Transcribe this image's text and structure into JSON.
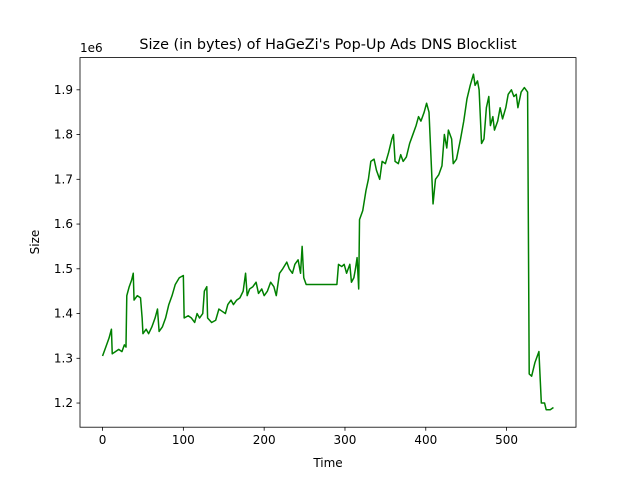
{
  "chart_data": {
    "type": "line",
    "title": "Size (in bytes) of HaGeZi's Pop-Up Ads DNS Blocklist",
    "x_label": "Time",
    "y_label": "Size",
    "y_offset_label": "1e6",
    "x": [
      0,
      4,
      8,
      11,
      12,
      16,
      20,
      24,
      27,
      29,
      30,
      33,
      36,
      38,
      39,
      43,
      47,
      49,
      50,
      54,
      57,
      61,
      65,
      68,
      70,
      74,
      78,
      82,
      86,
      90,
      95,
      100,
      101,
      106,
      110,
      114,
      117,
      120,
      124,
      126,
      129,
      130,
      135,
      140,
      144,
      148,
      152,
      155,
      159,
      162,
      166,
      170,
      174,
      177,
      179,
      182,
      186,
      190,
      193,
      197,
      200,
      204,
      208,
      212,
      215,
      219,
      223,
      228,
      231,
      235,
      238,
      242,
      245,
      247,
      249,
      252,
      270,
      290,
      292,
      296,
      299,
      302,
      306,
      308,
      311,
      313,
      315,
      317,
      318,
      322,
      326,
      329,
      332,
      336,
      339,
      343,
      346,
      350,
      354,
      358,
      360,
      362,
      366,
      369,
      372,
      376,
      380,
      384,
      388,
      391,
      394,
      398,
      401,
      404,
      409,
      412,
      416,
      420,
      423,
      426,
      428,
      432,
      434,
      438,
      443,
      447,
      451,
      455,
      459,
      461,
      464,
      466,
      469,
      472,
      475,
      478,
      480,
      483,
      485,
      489,
      492,
      495,
      499,
      502,
      506,
      509,
      512,
      514,
      518,
      522,
      526,
      528,
      531,
      535,
      540,
      543,
      547,
      549,
      554,
      558
    ],
    "series": [
      {
        "name": "Size",
        "color": "#008000",
        "values": [
          1.305,
          1.325,
          1.345,
          1.365,
          1.31,
          1.315,
          1.32,
          1.315,
          1.33,
          1.325,
          1.44,
          1.46,
          1.475,
          1.49,
          1.43,
          1.44,
          1.435,
          1.39,
          1.355,
          1.365,
          1.355,
          1.37,
          1.39,
          1.41,
          1.36,
          1.37,
          1.39,
          1.42,
          1.44,
          1.465,
          1.48,
          1.485,
          1.39,
          1.395,
          1.39,
          1.38,
          1.4,
          1.39,
          1.4,
          1.45,
          1.46,
          1.39,
          1.38,
          1.385,
          1.41,
          1.405,
          1.4,
          1.42,
          1.43,
          1.42,
          1.43,
          1.435,
          1.45,
          1.49,
          1.44,
          1.455,
          1.46,
          1.47,
          1.445,
          1.455,
          1.44,
          1.45,
          1.47,
          1.46,
          1.44,
          1.49,
          1.5,
          1.515,
          1.5,
          1.49,
          1.51,
          1.52,
          1.49,
          1.55,
          1.48,
          1.465,
          1.465,
          1.465,
          1.51,
          1.505,
          1.51,
          1.49,
          1.51,
          1.47,
          1.48,
          1.5,
          1.525,
          1.455,
          1.61,
          1.63,
          1.675,
          1.7,
          1.74,
          1.745,
          1.72,
          1.7,
          1.74,
          1.735,
          1.76,
          1.79,
          1.8,
          1.74,
          1.735,
          1.755,
          1.74,
          1.75,
          1.78,
          1.8,
          1.82,
          1.84,
          1.83,
          1.85,
          1.87,
          1.85,
          1.645,
          1.7,
          1.71,
          1.73,
          1.8,
          1.77,
          1.81,
          1.79,
          1.735,
          1.745,
          1.79,
          1.83,
          1.88,
          1.91,
          1.935,
          1.91,
          1.92,
          1.9,
          1.78,
          1.79,
          1.86,
          1.885,
          1.82,
          1.84,
          1.81,
          1.83,
          1.86,
          1.835,
          1.86,
          1.89,
          1.9,
          1.885,
          1.89,
          1.86,
          1.895,
          1.905,
          1.895,
          1.265,
          1.26,
          1.29,
          1.315,
          1.2,
          1.2,
          1.185,
          1.185,
          1.19
        ]
      }
    ],
    "xlim": [
      -27.9,
      585.9
    ],
    "ylim": [
      1.146,
      1.972
    ],
    "xticks": [
      0,
      100,
      200,
      300,
      400,
      500
    ],
    "yticks": [
      1.2,
      1.3,
      1.4,
      1.5,
      1.6,
      1.7,
      1.8,
      1.9
    ]
  }
}
